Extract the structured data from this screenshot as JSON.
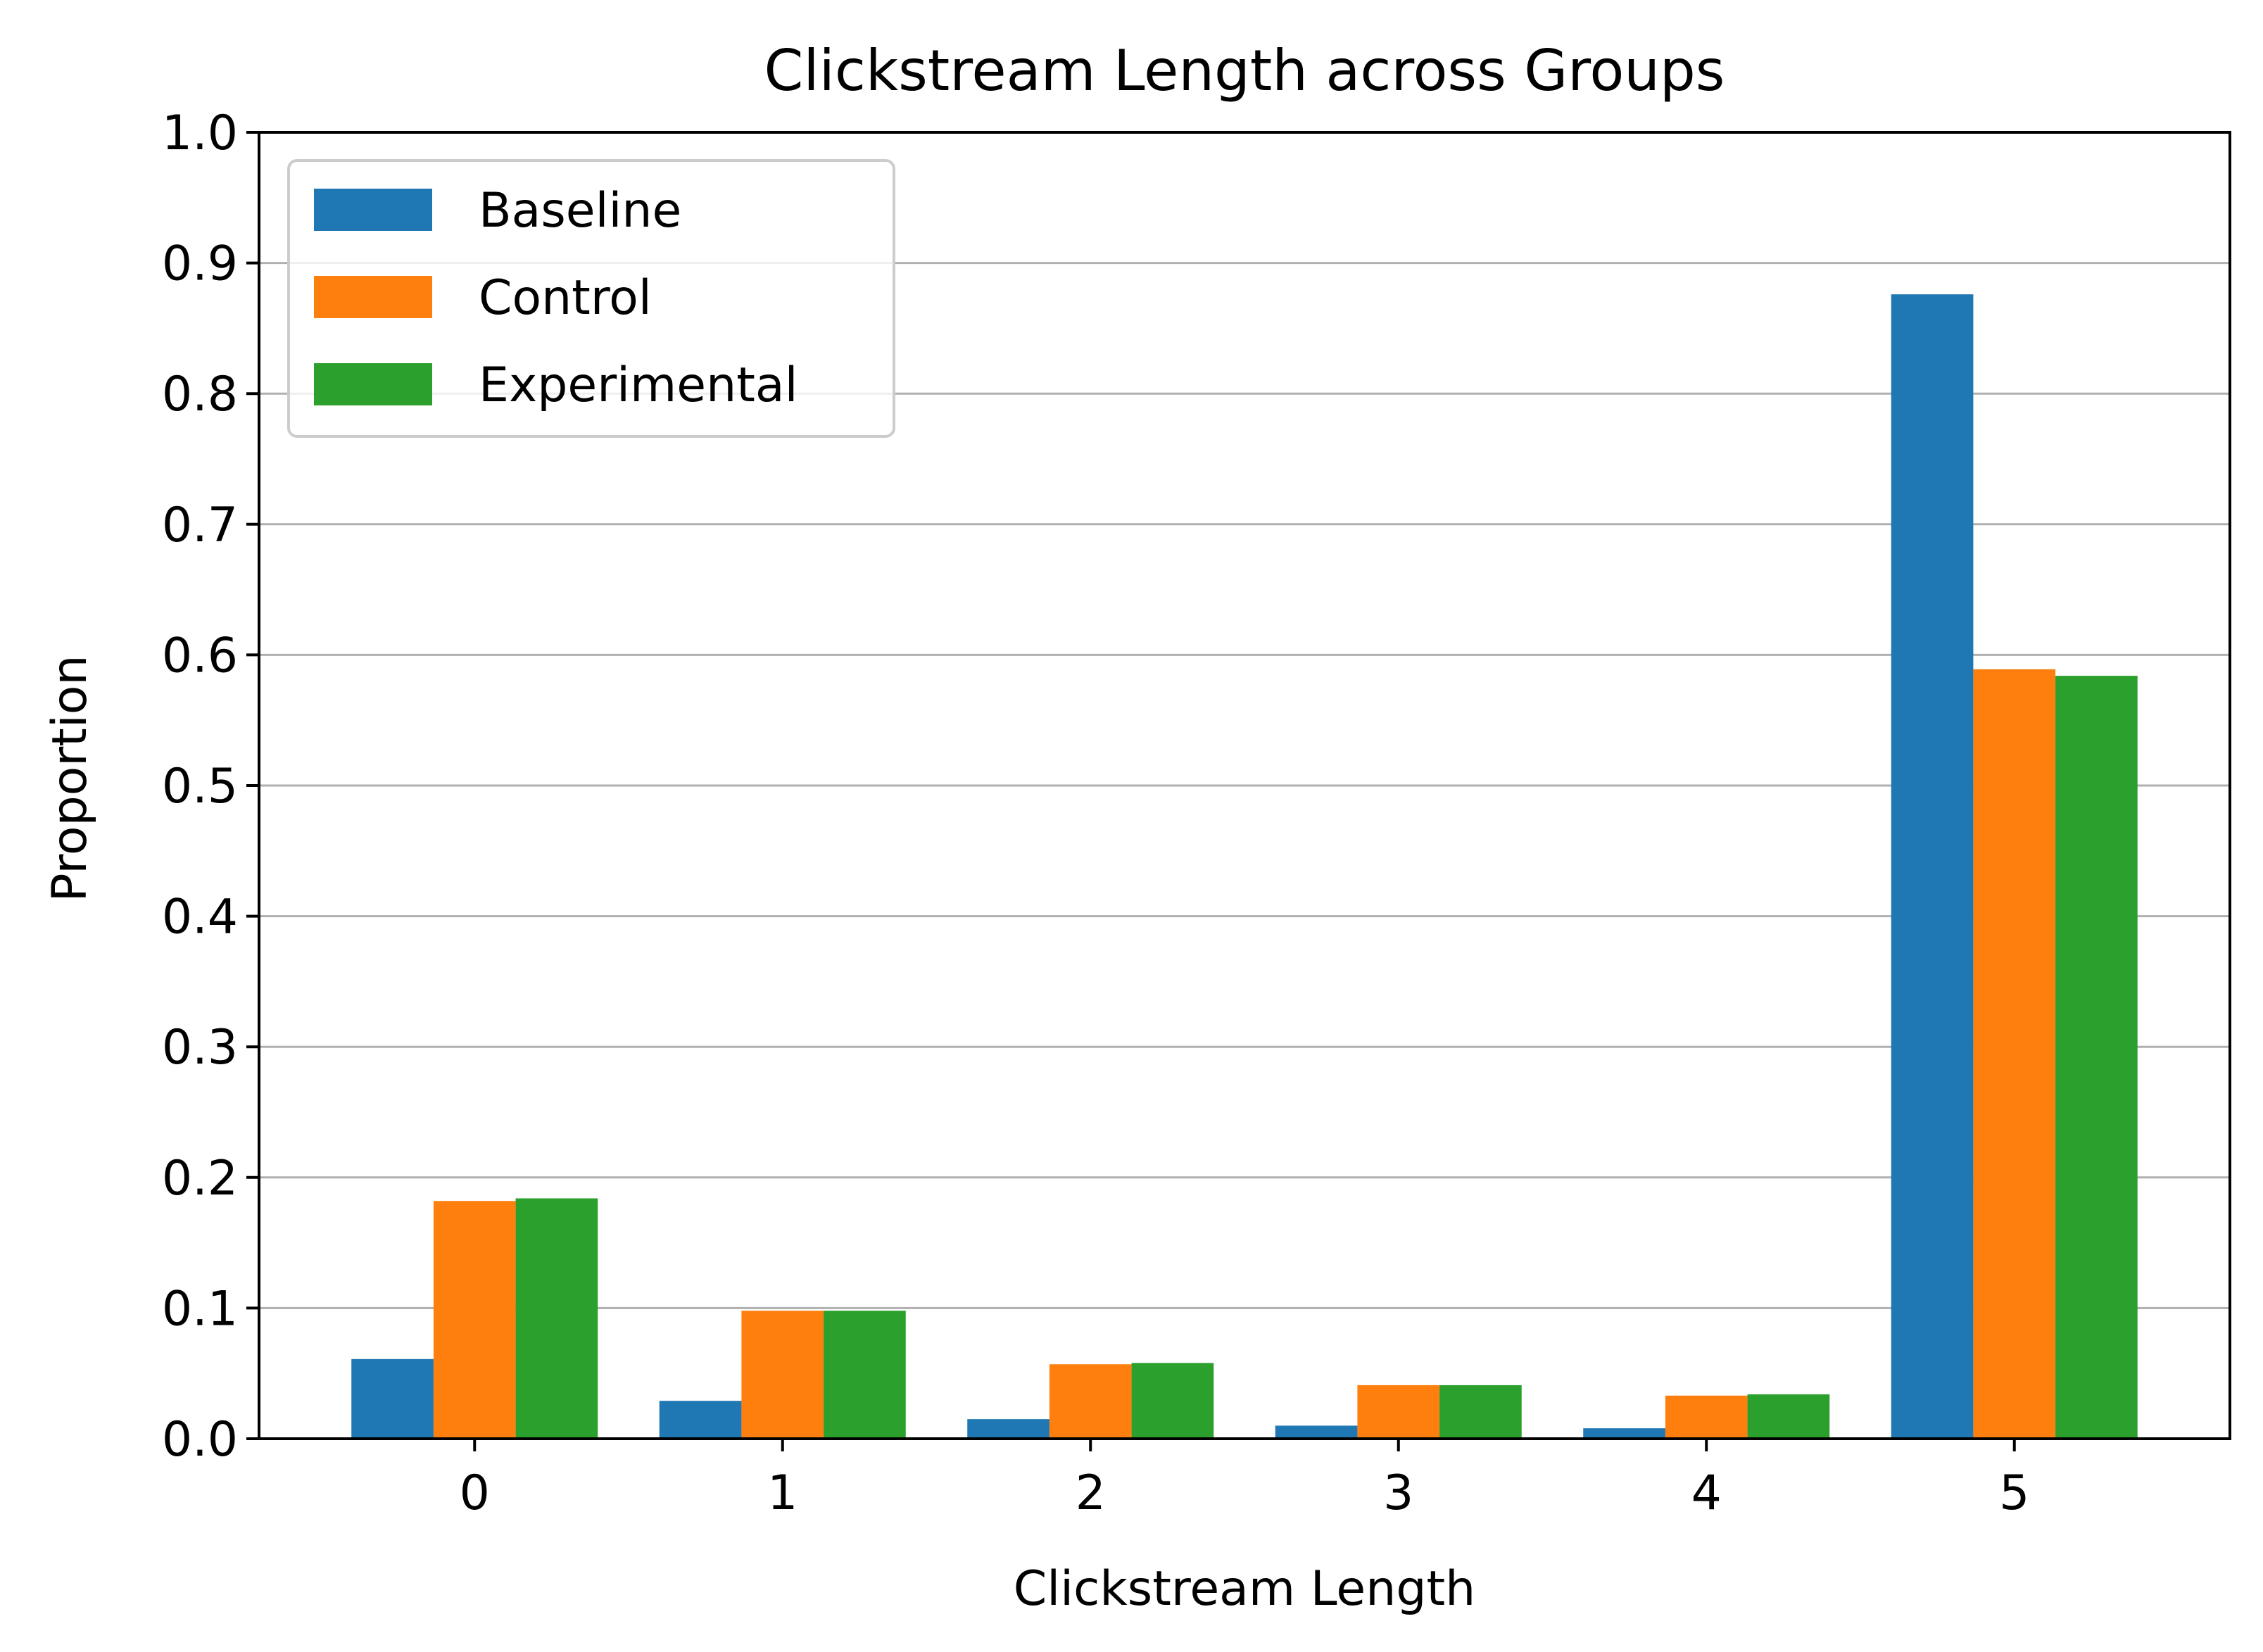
{
  "chart_data": {
    "type": "bar",
    "title": "Clickstream Length across Groups",
    "xlabel": "Clickstream Length",
    "ylabel": "Proportion",
    "categories": [
      "0",
      "1",
      "2",
      "3",
      "4",
      "5"
    ],
    "ylim": [
      0.0,
      1.0
    ],
    "yticks": [
      "0.0",
      "0.1",
      "0.2",
      "0.3",
      "0.4",
      "0.5",
      "0.6",
      "0.7",
      "0.8",
      "0.9",
      "1.0"
    ],
    "grid": "horizontal",
    "legend_position": "top-left",
    "series": [
      {
        "name": "Baseline",
        "color": "#1f77b4",
        "values": [
          0.061,
          0.029,
          0.015,
          0.01,
          0.008,
          0.876
        ]
      },
      {
        "name": "Control",
        "color": "#ff7f0e",
        "values": [
          0.182,
          0.098,
          0.057,
          0.041,
          0.033,
          0.589
        ]
      },
      {
        "name": "Experimental",
        "color": "#2ca02c",
        "values": [
          0.184,
          0.098,
          0.058,
          0.041,
          0.034,
          0.584
        ]
      }
    ]
  }
}
